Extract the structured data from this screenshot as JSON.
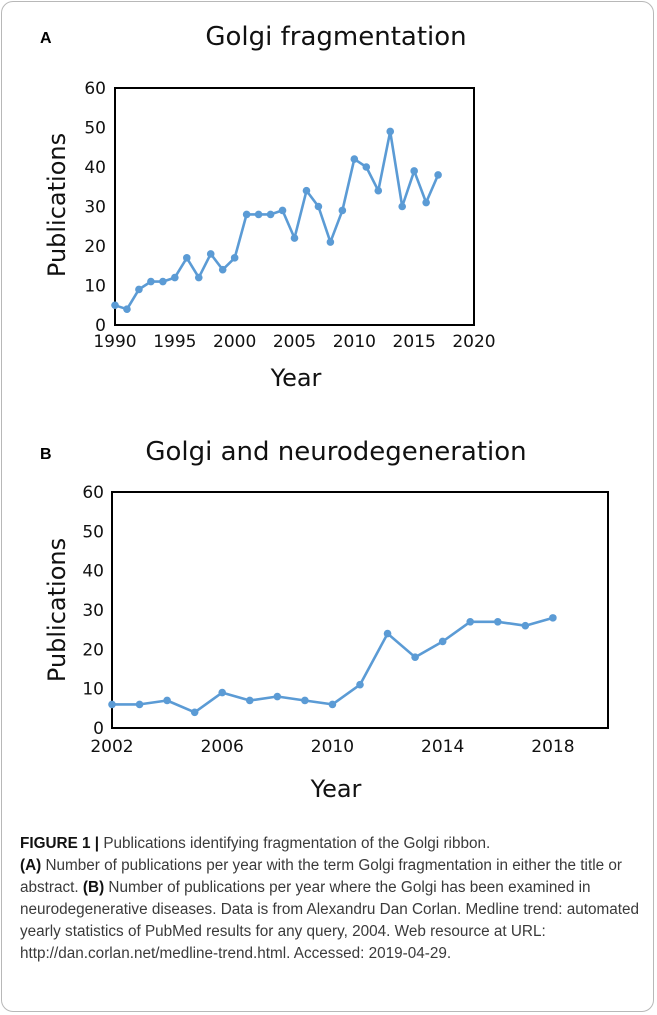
{
  "chart_data": [
    {
      "panel": "A",
      "type": "line",
      "title": "Golgi fragmentation",
      "xlabel": "Year",
      "ylabel": "Publications",
      "xlim": [
        1990,
        2020
      ],
      "ylim": [
        0,
        60
      ],
      "x_ticks": [
        1990,
        1995,
        2000,
        2005,
        2010,
        2015,
        2020
      ],
      "y_ticks": [
        0,
        10,
        20,
        30,
        40,
        50,
        60
      ],
      "grid": false,
      "color": "#5b9bd5",
      "x": [
        1990,
        1991,
        1992,
        1993,
        1994,
        1995,
        1996,
        1997,
        1998,
        1999,
        2000,
        2001,
        2002,
        2003,
        2004,
        2005,
        2006,
        2007,
        2008,
        2009,
        2010,
        2011,
        2012,
        2013,
        2014,
        2015,
        2016,
        2017
      ],
      "values": [
        5,
        4,
        9,
        11,
        11,
        12,
        17,
        12,
        18,
        14,
        17,
        28,
        28,
        28,
        29,
        22,
        34,
        30,
        21,
        29,
        42,
        40,
        34,
        49,
        30,
        39,
        31,
        38
      ]
    },
    {
      "panel": "B",
      "type": "line",
      "title": "Golgi and neurodegeneration",
      "xlabel": "Year",
      "ylabel": "Publications",
      "xlim": [
        2002,
        2020
      ],
      "ylim": [
        0,
        60
      ],
      "x_ticks": [
        2002,
        2006,
        2010,
        2014,
        2018
      ],
      "y_ticks": [
        0,
        10,
        20,
        30,
        40,
        50,
        60
      ],
      "grid": false,
      "color": "#5b9bd5",
      "x": [
        2002,
        2003,
        2004,
        2005,
        2006,
        2007,
        2008,
        2009,
        2010,
        2011,
        2012,
        2013,
        2014,
        2015,
        2016,
        2017,
        2018
      ],
      "values": [
        6,
        6,
        7,
        4,
        9,
        7,
        8,
        7,
        6,
        11,
        24,
        18,
        22,
        27,
        27,
        26,
        28
      ]
    }
  ],
  "caption": {
    "figure_label": "FIGURE 1 |",
    "figure_title": " Publications identifying fragmentation of the Golgi ribbon.",
    "part_a_label": "(A)",
    "part_a_text": " Number of publications per year with the term Golgi fragmentation in either the title or abstract. ",
    "part_b_label": "(B)",
    "part_b_text": " Number of publications per year where the Golgi has been examined in neurodegenerative diseases. Data is from Alexandru Dan Corlan. Medline trend: automated yearly statistics of PubMed results for any query, 2004. Web resource at URL: http://dan.corlan.net/medline-trend.html. Accessed: 2019-04-29."
  }
}
